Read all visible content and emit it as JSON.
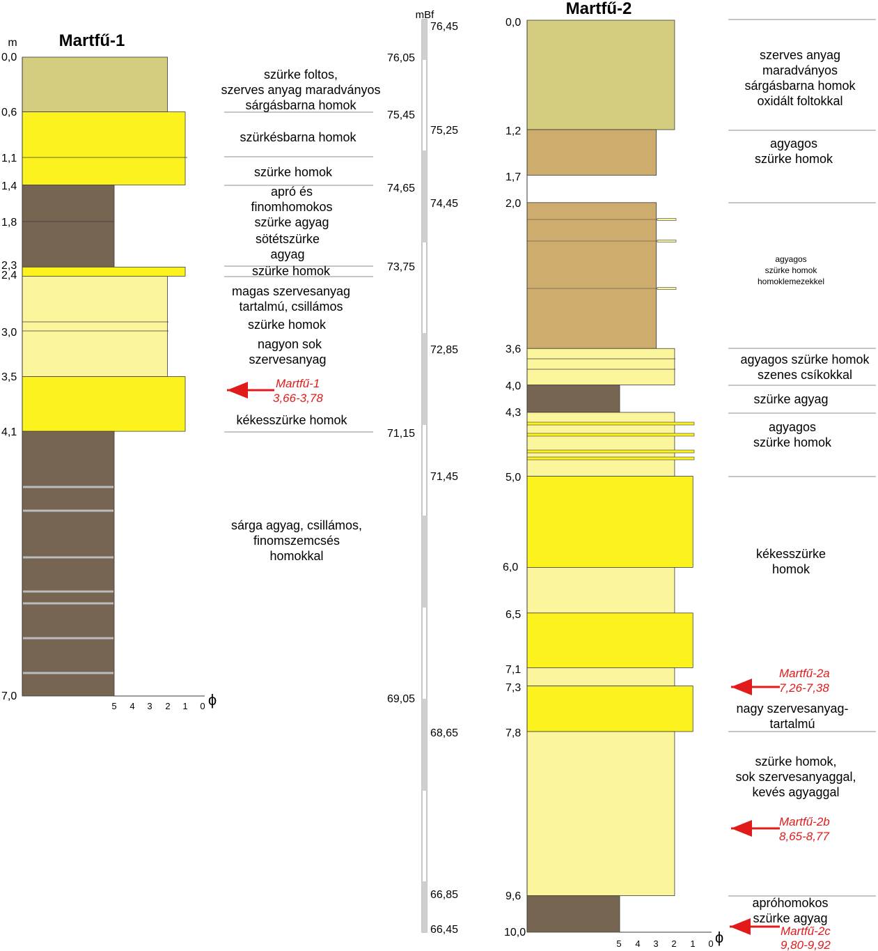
{
  "colors": {
    "olive_sand": "#d4cd7f",
    "yellow_sand": "#fcf31e",
    "light_sand": "#fbf59c",
    "clayey_sand": "#cdac6e",
    "clay": "#766550",
    "lamina": "#b9bcbf",
    "sample_arrow": "#e11a1a",
    "sample_text": "#e11a1a",
    "outline": "#3a3a3a",
    "separator": "#8d8d8d",
    "ruler_grey": "#cfcfcf"
  },
  "martfu1": {
    "title": "Martfű-1",
    "depth_unit": "m",
    "phi_symbol": "ϕ",
    "phi_ticks": [
      "5",
      "4",
      "3",
      "2",
      "1",
      "0"
    ],
    "depth_labels": [
      "0,0",
      "0,6",
      "1,1",
      "1,4",
      "1,8",
      "2,3",
      "2,4",
      "3,0",
      "3,5",
      "4,1",
      "7,0"
    ],
    "layers": [
      {
        "top": 0.0,
        "bottom": 0.6,
        "phi": 2,
        "color": "olive_sand"
      },
      {
        "top": 0.6,
        "bottom": 1.4,
        "phi": 1,
        "color": "yellow_sand"
      },
      {
        "top": 1.4,
        "bottom": 2.3,
        "phi": 5,
        "color": "clay"
      },
      {
        "top": 2.3,
        "bottom": 2.4,
        "phi": 1,
        "color": "yellow_sand"
      },
      {
        "top": 2.4,
        "bottom": 3.5,
        "phi": 2,
        "color": "light_sand"
      },
      {
        "top": 3.5,
        "bottom": 4.1,
        "phi": 1,
        "color": "yellow_sand"
      },
      {
        "top": 4.1,
        "bottom": 7.0,
        "phi": 5,
        "color": "clay"
      }
    ],
    "descriptions": [
      "szürke foltos,",
      "szerves anyag maradványos",
      "sárgásbarna homok",
      "szürkésbarna homok",
      "szürke homok",
      "apró és",
      "finomhomokos",
      "szürke agyag",
      "sötétszürke",
      "agyag",
      "szürke homok",
      "magas szervesanyag",
      "tartalmú, csillámos",
      "szürke homok",
      "nagyon sok",
      "szervesanyag",
      "kékesszürke homok",
      "sárga agyag, csillámos,",
      "finomszemcsés",
      "homokkal"
    ],
    "samples": [
      {
        "name": "Martfű-1",
        "range": "3,66-3,78"
      }
    ]
  },
  "elevation": {
    "unit": "mBf",
    "labels": [
      "76,45",
      "76,05",
      "75,45",
      "75,25",
      "74,65",
      "74,45",
      "73,75",
      "72,85",
      "71,15",
      "71,45",
      "69,05",
      "68,65",
      "66,85",
      "66,45"
    ]
  },
  "martfu2": {
    "title": "Martfű-2",
    "phi_symbol": "ϕ",
    "phi_ticks": [
      "5",
      "4",
      "3",
      "2",
      "1",
      "0"
    ],
    "depth_labels": [
      "0,0",
      "1,2",
      "1,7",
      "2,0",
      "3,6",
      "4,0",
      "4,3",
      "5,0",
      "6,0",
      "6,5",
      "7,1",
      "7,3",
      "7,8",
      "9,6",
      "10,0"
    ],
    "layers": [
      {
        "top": 0.0,
        "bottom": 1.2,
        "phi": 2,
        "color": "olive_sand"
      },
      {
        "top": 1.2,
        "bottom": 1.7,
        "phi": 3,
        "color": "clayey_sand"
      },
      {
        "top": 2.0,
        "bottom": 3.6,
        "phi": 3,
        "color": "clayey_sand"
      },
      {
        "top": 3.6,
        "bottom": 4.0,
        "phi": 2,
        "color": "light_sand"
      },
      {
        "top": 4.0,
        "bottom": 4.3,
        "phi": 5,
        "color": "clay"
      },
      {
        "top": 4.3,
        "bottom": 5.0,
        "phi": 2,
        "color": "light_sand"
      },
      {
        "top": 5.0,
        "bottom": 6.0,
        "phi": 1,
        "color": "yellow_sand"
      },
      {
        "top": 6.0,
        "bottom": 6.5,
        "phi": 2,
        "color": "light_sand"
      },
      {
        "top": 6.5,
        "bottom": 7.1,
        "phi": 1,
        "color": "yellow_sand"
      },
      {
        "top": 7.1,
        "bottom": 7.3,
        "phi": 2,
        "color": "light_sand"
      },
      {
        "top": 7.3,
        "bottom": 7.8,
        "phi": 1,
        "color": "yellow_sand"
      },
      {
        "top": 7.8,
        "bottom": 9.6,
        "phi": 2,
        "color": "light_sand"
      },
      {
        "top": 9.6,
        "bottom": 10.0,
        "phi": 5,
        "color": "clay"
      }
    ],
    "descriptions": [
      "szerves anyag",
      "maradványos",
      "sárgásbarna homok",
      "oxidált foltokkal",
      "agyagos",
      "szürke homok",
      "agyagos",
      "szürke homok",
      "homoklemezekkel",
      "agyagos szürke homok",
      "szenes csíkokkal",
      "szürke agyag",
      "agyagos",
      "szürke homok",
      "kékesszürke",
      "homok",
      "nagy szervesanyag-",
      "tartalmú",
      "szürke homok,",
      "sok szervesanyaggal,",
      "kevés agyaggal",
      "apróhomokos",
      "szürke agyag"
    ],
    "samples": [
      {
        "name": "Martfű-2a",
        "range": "7,26-7,38"
      },
      {
        "name": "Martfű-2b",
        "range": "8,65-8,77"
      },
      {
        "name": "Martfű-2c",
        "range": "9,80-9,92"
      }
    ]
  }
}
